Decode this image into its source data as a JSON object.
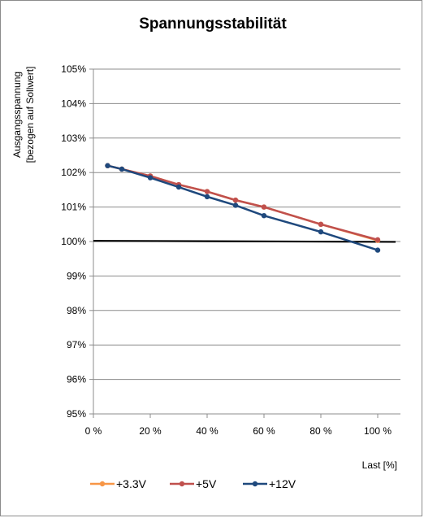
{
  "chart_data": {
    "type": "line",
    "title": "Spannungsstabilität",
    "xlabel": "Last [%]",
    "ylabel_lines": [
      "Ausgangsspannung",
      "[bezogen auf Sollwert]"
    ],
    "x_tick_labels": [
      "0 %",
      "20 %",
      "40 %",
      "60 %",
      "80 %",
      "100 %"
    ],
    "x_ticks": [
      0,
      20,
      40,
      60,
      80,
      100
    ],
    "xlim": [
      0,
      108
    ],
    "y_tick_labels": [
      "95%",
      "96%",
      "97%",
      "98%",
      "99%",
      "100%",
      "101%",
      "102%",
      "103%",
      "104%",
      "105%"
    ],
    "y_ticks": [
      95,
      96,
      97,
      98,
      99,
      100,
      101,
      102,
      103,
      104,
      105
    ],
    "ylim": [
      95,
      105
    ],
    "grid": "horizontal",
    "legend_position": "bottom-left",
    "reference_line": {
      "y_start": 100.02,
      "y_end": 99.99,
      "color": "#000000"
    },
    "series": [
      {
        "name": "+3.3V",
        "color": "#f79646",
        "x": [
          5,
          10,
          20,
          30,
          40,
          50,
          60,
          80,
          100
        ],
        "y": [
          102.2,
          102.1,
          101.9,
          101.65,
          101.45,
          101.2,
          101.0,
          100.5,
          100.03
        ]
      },
      {
        "name": "+5V",
        "color": "#c0504d",
        "x": [
          5,
          10,
          20,
          30,
          40,
          50,
          60,
          80,
          100
        ],
        "y": [
          102.2,
          102.1,
          101.9,
          101.65,
          101.45,
          101.2,
          101.0,
          100.5,
          100.05
        ]
      },
      {
        "name": "+12V",
        "color": "#1f497d",
        "x": [
          5,
          10,
          20,
          30,
          40,
          50,
          60,
          80,
          100
        ],
        "y": [
          102.2,
          102.1,
          101.85,
          101.58,
          101.3,
          101.05,
          100.75,
          100.28,
          99.75
        ]
      }
    ]
  }
}
